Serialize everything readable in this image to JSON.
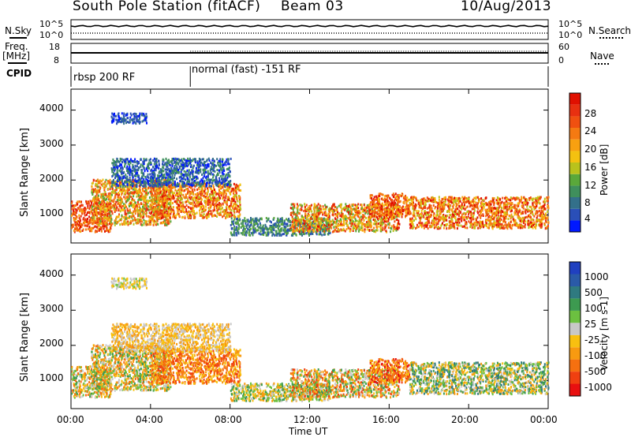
{
  "header": {
    "station": "South Pole Station (fitACF)",
    "beam": "Beam 03",
    "date": "10/Aug/2013"
  },
  "indicators": {
    "nsky_label": "N.Sky",
    "nsky_ticks": [
      "10^5",
      "10^0"
    ],
    "nsearch_label": "N.Search",
    "nsearch_ticks": [
      "10^5",
      "10^0"
    ],
    "freq_label_1": "Freq.",
    "freq_label_2": "[MHz]",
    "freq_ticks": [
      "18",
      "8"
    ],
    "nave_label": "Nave",
    "nave_ticks": [
      "60",
      "0"
    ],
    "cpid_label": "CPID",
    "cpid_modes": [
      {
        "label": "rbsp 200 RF",
        "start_hour": 0
      },
      {
        "label": "normal (fast) -151 RF",
        "start_hour": 6
      }
    ]
  },
  "chart_data": [
    {
      "type": "heatmap",
      "parameter": "Power",
      "ylabel": "Slant Range [km]",
      "xlabel": "Time UT",
      "xlim": [
        0,
        24
      ],
      "ylim": [
        200,
        4600
      ],
      "x_ticks": [
        "00:00",
        "04:00",
        "08:00",
        "12:00",
        "16:00",
        "20:00",
        "00:00"
      ],
      "y_ticks": [
        "1000",
        "2000",
        "3000",
        "4000"
      ],
      "colorbar": {
        "label": "Power [dB]",
        "ticks": [
          "28",
          "24",
          "20",
          "16",
          "12",
          "8",
          "4"
        ],
        "range": [
          0,
          30
        ],
        "colors": [
          "#0018ff",
          "#2a4fb8",
          "#33708a",
          "#3f8f5c",
          "#5aa83a",
          "#b9c21c",
          "#f4c110",
          "#f8a010",
          "#f57a12",
          "#f05010",
          "#e83010",
          "#e01000"
        ]
      }
    },
    {
      "type": "heatmap",
      "parameter": "Velocity",
      "ylabel": "Slant Range [km]",
      "xlabel": "Time UT",
      "xlim": [
        0,
        24
      ],
      "ylim": [
        200,
        4600
      ],
      "x_ticks": [
        "00:00",
        "04:00",
        "08:00",
        "12:00",
        "16:00",
        "20:00",
        "00:00"
      ],
      "y_ticks": [
        "1000",
        "2000",
        "3000",
        "4000"
      ],
      "colorbar": {
        "label": "Velocity [m s-1]",
        "ticks": [
          "1000",
          "500",
          "100",
          "25",
          "-25",
          "-100",
          "-500",
          "-1000"
        ],
        "colors": [
          "#2040c0",
          "#2a5aa8",
          "#2f7a80",
          "#3d9a50",
          "#6cc040",
          "#c8c8c8",
          "#f8c010",
          "#f89a10",
          "#f57010",
          "#f04010",
          "#e81010"
        ]
      }
    }
  ]
}
